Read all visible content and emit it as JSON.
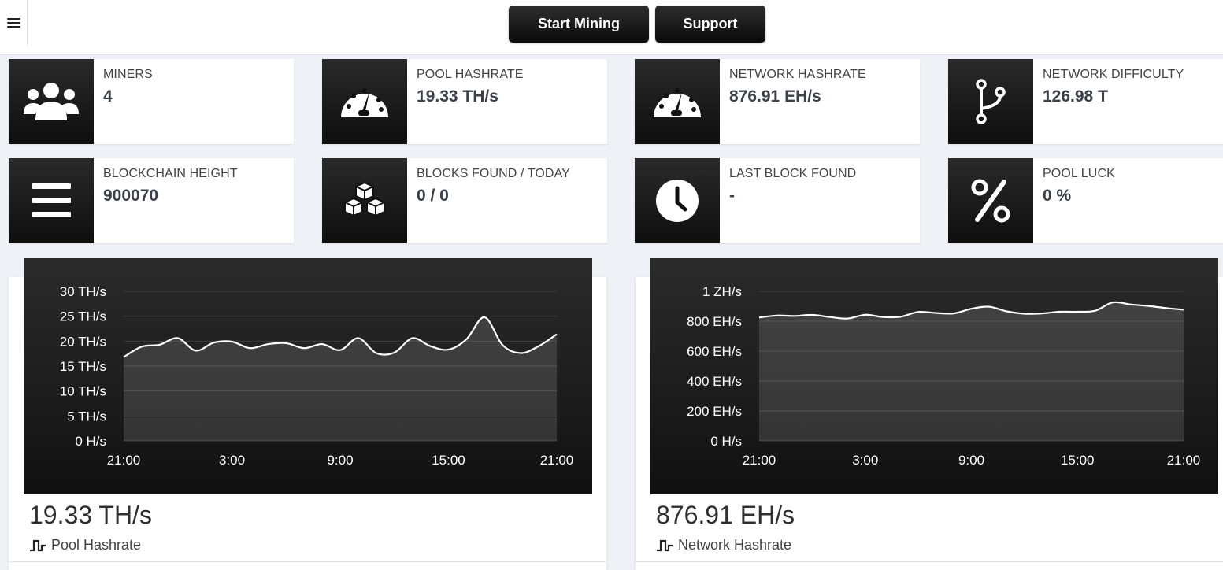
{
  "topbar": {
    "start_label": "Start Mining",
    "support_label": "Support"
  },
  "stats": [
    {
      "label": "MINERS",
      "value": "4",
      "icon": "users-icon"
    },
    {
      "label": "POOL HASHRATE",
      "value": "19.33 TH/s",
      "icon": "gauge-icon"
    },
    {
      "label": "NETWORK HASHRATE",
      "value": "876.91 EH/s",
      "icon": "gauge-icon"
    },
    {
      "label": "NETWORK DIFFICULTY",
      "value": "126.98 T",
      "icon": "branch-icon"
    },
    {
      "label": "BLOCKCHAIN HEIGHT",
      "value": "900070",
      "icon": "bars-icon"
    },
    {
      "label": "BLOCKS FOUND / TODAY",
      "value": "0 / 0",
      "icon": "cubes-icon"
    },
    {
      "label": "LAST BLOCK FOUND",
      "value": "-",
      "icon": "clock-icon"
    },
    {
      "label": "POOL LUCK",
      "value": "0 %",
      "icon": "percent-icon"
    }
  ],
  "panels": {
    "pool": {
      "big": "19.33 TH/s",
      "caption": "Pool Hashrate"
    },
    "network": {
      "big": "876.91 EH/s",
      "caption": "Network Hashrate"
    }
  },
  "chart_data": [
    {
      "type": "area",
      "title": "",
      "xlabel": "",
      "ylabel": "",
      "x_ticks": [
        "21:00",
        "3:00",
        "9:00",
        "15:00",
        "21:00"
      ],
      "y_ticks": [
        "0 H/s",
        "5 TH/s",
        "10 TH/s",
        "15 TH/s",
        "20 TH/s",
        "25 TH/s",
        "30 TH/s"
      ],
      "ylim": [
        0,
        30
      ],
      "xlim": [
        0,
        24
      ],
      "units": "TH/s",
      "series": [
        {
          "x": [
            0,
            1,
            2,
            3,
            4,
            5,
            6,
            7,
            8,
            9,
            10,
            11,
            12,
            13,
            14,
            15,
            16,
            17,
            18,
            19,
            20,
            21,
            22,
            23,
            24
          ],
          "values": [
            16.8,
            18.9,
            19.3,
            20.6,
            18.1,
            19.7,
            19.9,
            18.6,
            19.4,
            19.6,
            18.6,
            19.4,
            18.2,
            20.6,
            17.6,
            17.7,
            20.6,
            19.0,
            18.3,
            20.4,
            24.8,
            19.2,
            17.6,
            19.0,
            21.4
          ]
        }
      ],
      "grid": true,
      "legend": "none"
    },
    {
      "type": "area",
      "title": "",
      "xlabel": "",
      "ylabel": "",
      "x_ticks": [
        "21:00",
        "3:00",
        "9:00",
        "15:00",
        "21:00"
      ],
      "y_ticks": [
        "0 H/s",
        "200 EH/s",
        "400 EH/s",
        "600 EH/s",
        "800 EH/s",
        "1 ZH/s"
      ],
      "ylim": [
        0,
        1000
      ],
      "xlim": [
        0,
        24
      ],
      "units": "EH/s",
      "series": [
        {
          "x": [
            0,
            1,
            2,
            3,
            4,
            5,
            6,
            7,
            8,
            9,
            10,
            11,
            12,
            13,
            14,
            15,
            16,
            17,
            18,
            19,
            20,
            21,
            22,
            23,
            24
          ],
          "values": [
            825,
            838,
            835,
            842,
            828,
            818,
            843,
            828,
            830,
            862,
            855,
            852,
            883,
            897,
            866,
            850,
            852,
            863,
            863,
            870,
            926,
            912,
            902,
            888,
            877
          ]
        }
      ],
      "grid": true,
      "legend": "none"
    }
  ]
}
